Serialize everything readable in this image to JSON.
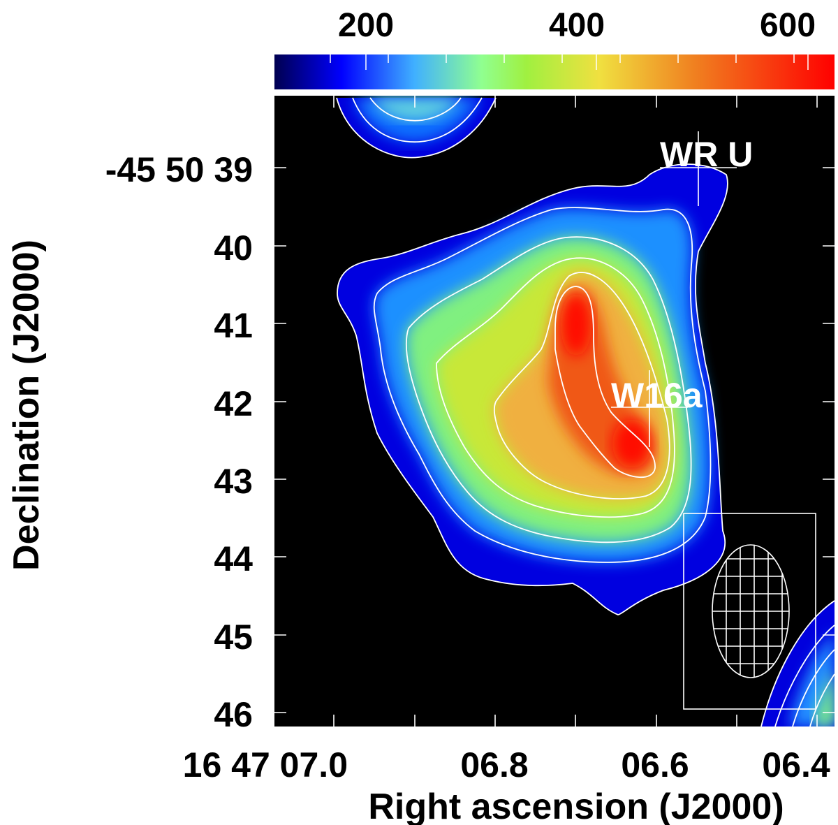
{
  "colorbar": {
    "ticks": [
      "200",
      "400",
      "600"
    ],
    "tick_values": [
      200,
      400,
      600
    ],
    "range": [
      100,
      650
    ],
    "colormap": [
      "#000080",
      "#0000ff",
      "#00a0ff",
      "#80ff80",
      "#ffff00",
      "#ff8000",
      "#ff0000"
    ]
  },
  "axes": {
    "xlabel": "Right ascension (J2000)",
    "ylabel": "Declination (J2000)",
    "x_ticks": [
      "16 47 07.0",
      "06.8",
      "06.6",
      "06.4"
    ],
    "y_ticks": [
      "-45 50 39",
      "40",
      "41",
      "42",
      "43",
      "44",
      "45",
      "46"
    ]
  },
  "sources": [
    {
      "name": "WR U"
    },
    {
      "name": "W16a"
    }
  ],
  "colors": {
    "background": "#000000",
    "contour": "#ffffff",
    "page": "#ffffff"
  }
}
